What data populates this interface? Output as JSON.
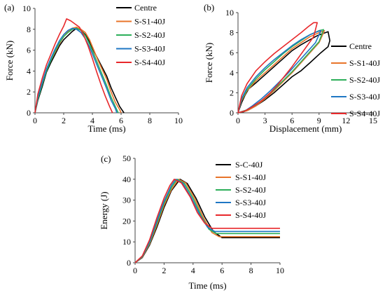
{
  "chart_data": [
    {
      "panel_label": "(a)",
      "type": "line",
      "xlabel": "Time (ms)",
      "ylabel": "Force (kN)",
      "xlim": [
        0,
        10
      ],
      "ylim": [
        0,
        10
      ],
      "xticks": [
        "0",
        "2",
        "4",
        "6",
        "8",
        "10"
      ],
      "yticks": [
        "0",
        "2",
        "4",
        "6",
        "8",
        "10"
      ],
      "legend_position": "top-right",
      "series": [
        {
          "name": "Centre",
          "color": "#000000",
          "x": [
            0,
            0.2,
            0.5,
            0.8,
            1.1,
            1.4,
            1.7,
            2.0,
            2.3,
            2.6,
            2.9,
            3.2,
            3.5,
            3.8,
            4.1,
            4.4,
            4.7,
            5.0,
            5.3,
            5.6,
            5.9,
            6.2
          ],
          "y": [
            0,
            1.2,
            2.5,
            3.9,
            4.8,
            5.6,
            6.4,
            7.0,
            7.4,
            7.8,
            8.1,
            7.9,
            7.5,
            6.8,
            5.9,
            5.1,
            4.3,
            3.5,
            2.4,
            1.5,
            0.6,
            0
          ]
        },
        {
          "name": "S-S1-40J",
          "color": "#E8742A",
          "x": [
            0,
            0.2,
            0.5,
            0.8,
            1.1,
            1.4,
            1.7,
            2.0,
            2.3,
            2.6,
            2.9,
            3.2,
            3.5,
            3.8,
            4.1,
            4.4,
            4.7,
            5.0,
            5.3,
            5.6,
            5.9,
            6.0
          ],
          "y": [
            0,
            1.4,
            2.9,
            4.1,
            5.0,
            5.8,
            6.6,
            7.3,
            7.8,
            8.1,
            8.2,
            8.0,
            7.7,
            7.0,
            6.0,
            5.0,
            4.1,
            3.2,
            2.0,
            1.0,
            0.3,
            0
          ]
        },
        {
          "name": "S-S2-40J",
          "color": "#2DAF5A",
          "x": [
            0,
            0.2,
            0.5,
            0.8,
            1.1,
            1.4,
            1.7,
            2.0,
            2.3,
            2.6,
            2.9,
            3.2,
            3.5,
            3.8,
            4.1,
            4.4,
            4.7,
            5.0,
            5.3,
            5.6,
            5.8
          ],
          "y": [
            0,
            1.3,
            2.7,
            4.0,
            5.0,
            5.9,
            6.7,
            7.3,
            7.7,
            8.0,
            8.1,
            7.9,
            7.4,
            6.6,
            5.6,
            4.6,
            3.6,
            2.6,
            1.5,
            0.6,
            0
          ]
        },
        {
          "name": "S-S3-40J",
          "color": "#1F77C4",
          "x": [
            0,
            0.2,
            0.5,
            0.8,
            1.1,
            1.4,
            1.7,
            2.0,
            2.3,
            2.6,
            2.9,
            3.2,
            3.5,
            3.8,
            4.1,
            4.4,
            4.7,
            5.0,
            5.3,
            5.6,
            5.7
          ],
          "y": [
            0,
            1.5,
            2.9,
            4.2,
            5.2,
            6.1,
            6.9,
            7.5,
            7.9,
            8.1,
            8.0,
            7.7,
            7.1,
            6.3,
            5.3,
            4.3,
            3.3,
            2.3,
            1.2,
            0.4,
            0
          ]
        },
        {
          "name": "S-S4-40J",
          "color": "#E8282B",
          "x": [
            0,
            0.2,
            0.5,
            0.8,
            1.1,
            1.4,
            1.7,
            2.0,
            2.2,
            2.5,
            2.8,
            3.1,
            3.4,
            3.7,
            4.0,
            4.3,
            4.6,
            4.9,
            5.2,
            5.4
          ],
          "y": [
            0,
            1.8,
            3.3,
            4.6,
            5.6,
            6.6,
            7.5,
            8.3,
            9.0,
            8.8,
            8.5,
            8.2,
            7.4,
            6.4,
            5.2,
            3.9,
            2.7,
            1.6,
            0.6,
            0
          ]
        }
      ]
    },
    {
      "panel_label": "(b)",
      "type": "line",
      "xlabel": "Displacement (mm)",
      "ylabel": "Force (kN)",
      "xlim": [
        0,
        15
      ],
      "ylim": [
        0,
        10
      ],
      "xticks": [
        "0",
        "3",
        "6",
        "9",
        "12",
        "15"
      ],
      "yticks": [
        "0",
        "2",
        "4",
        "6",
        "8",
        "10"
      ],
      "legend_position": "right",
      "series": [
        {
          "name": "Centre",
          "color": "#000000",
          "x": [
            0,
            0.4,
            0.8,
            1.2,
            2.0,
            3.0,
            4.0,
            5.0,
            6.0,
            7.0,
            8.0,
            8.8,
            9.4,
            10.0,
            10.2,
            10.0,
            9.2,
            8.0,
            7.0,
            6.0,
            5.0,
            4.0,
            3.0,
            2.0,
            1.2,
            0.6,
            0
          ],
          "y": [
            0,
            1.0,
            1.8,
            2.4,
            3.0,
            3.8,
            4.6,
            5.4,
            6.2,
            6.8,
            7.3,
            7.7,
            7.9,
            8.1,
            7.2,
            6.6,
            6.0,
            5.0,
            4.2,
            3.6,
            2.8,
            2.0,
            1.3,
            0.7,
            0.3,
            0.1,
            0
          ]
        },
        {
          "name": "S-S1-40J",
          "color": "#E8742A",
          "x": [
            0,
            0.4,
            1.0,
            2.0,
            3.0,
            4.0,
            5.0,
            6.0,
            7.0,
            8.0,
            9.0,
            9.6,
            9.0,
            8.0,
            7.0,
            6.0,
            5.0,
            4.0,
            3.0,
            2.0,
            1.0,
            0
          ],
          "y": [
            0,
            1.2,
            2.2,
            3.2,
            4.0,
            4.8,
            5.6,
            6.4,
            7.0,
            7.6,
            8.0,
            8.2,
            7.0,
            6.0,
            5.0,
            4.0,
            3.1,
            2.2,
            1.4,
            0.7,
            0.2,
            0
          ]
        },
        {
          "name": "S-S2-40J",
          "color": "#2DAF5A",
          "x": [
            0,
            0.4,
            1.0,
            2.0,
            3.0,
            4.0,
            5.0,
            6.0,
            7.0,
            8.0,
            9.0,
            9.5,
            9.0,
            8.0,
            7.0,
            6.0,
            5.0,
            4.0,
            3.0,
            2.0,
            1.0,
            0
          ],
          "y": [
            0,
            1.3,
            2.3,
            3.4,
            4.3,
            5.1,
            5.9,
            6.6,
            7.2,
            7.8,
            8.2,
            8.3,
            7.1,
            6.1,
            5.1,
            4.1,
            3.2,
            2.3,
            1.5,
            0.8,
            0.3,
            0
          ]
        },
        {
          "name": "S-S3-40J",
          "color": "#1F77C4",
          "x": [
            0,
            0.4,
            1.0,
            2.0,
            3.0,
            4.0,
            5.0,
            6.0,
            7.0,
            8.0,
            8.8,
            9.2,
            8.6,
            7.6,
            6.6,
            5.6,
            4.6,
            3.6,
            2.6,
            1.6,
            0.8,
            0
          ],
          "y": [
            0,
            1.4,
            2.5,
            3.6,
            4.5,
            5.3,
            6.0,
            6.7,
            7.3,
            7.8,
            8.1,
            8.2,
            7.0,
            6.0,
            5.0,
            4.0,
            3.1,
            2.2,
            1.4,
            0.7,
            0.2,
            0
          ]
        },
        {
          "name": "S-S4-40J",
          "color": "#E8282B",
          "x": [
            0,
            0.4,
            1.0,
            2.0,
            3.0,
            4.0,
            5.0,
            6.0,
            7.0,
            7.8,
            8.4,
            8.8,
            8.4,
            7.6,
            6.8,
            6.0,
            5.2,
            4.4,
            3.6,
            2.6,
            1.6,
            0.8,
            0
          ],
          "y": [
            0,
            1.7,
            2.9,
            4.2,
            5.1,
            5.9,
            6.6,
            7.3,
            8.0,
            8.6,
            9.0,
            9.0,
            7.6,
            6.6,
            5.6,
            4.6,
            3.7,
            2.8,
            2.0,
            1.2,
            0.6,
            0.2,
            0
          ]
        }
      ]
    },
    {
      "panel_label": "(c)",
      "type": "line",
      "xlabel": "Time (ms)",
      "ylabel": "Energy  (J)",
      "xlim": [
        0,
        10
      ],
      "ylim": [
        0,
        50
      ],
      "xticks": [
        "0",
        "2",
        "4",
        "6",
        "8",
        "10"
      ],
      "yticks": [
        "0",
        "10",
        "20",
        "30",
        "40",
        "50"
      ],
      "legend_position": "top-right",
      "series": [
        {
          "name": "S-C-40J",
          "color": "#000000",
          "x": [
            0,
            0.5,
            1.0,
            1.5,
            2.0,
            2.5,
            3.1,
            3.6,
            4.2,
            4.8,
            5.4,
            6.0,
            7.0,
            8.0,
            9.0,
            10.0
          ],
          "y": [
            0,
            2.5,
            8.5,
            17.0,
            26.5,
            34.5,
            40.0,
            38.0,
            31.0,
            22.0,
            15.0,
            12.0,
            12.0,
            12.0,
            12.0,
            12.0
          ]
        },
        {
          "name": "S-S1-40J",
          "color": "#E8742A",
          "x": [
            0,
            0.5,
            1.0,
            1.5,
            2.0,
            2.5,
            3.0,
            3.5,
            4.1,
            4.7,
            5.3,
            5.8,
            7.0,
            8.0,
            9.0,
            10.0
          ],
          "y": [
            0,
            2.7,
            9.0,
            18.0,
            27.5,
            35.0,
            40.0,
            38.2,
            31.0,
            21.8,
            14.5,
            12.5,
            12.5,
            12.5,
            12.5,
            12.5
          ]
        },
        {
          "name": "S-S2-40J",
          "color": "#2DAF5A",
          "x": [
            0,
            0.5,
            1.0,
            1.5,
            2.0,
            2.5,
            2.9,
            3.4,
            4.0,
            4.6,
            5.1,
            5.6,
            7.0,
            8.0,
            9.0,
            10.0
          ],
          "y": [
            0,
            2.9,
            9.5,
            19.0,
            28.5,
            36.0,
            40.0,
            38.0,
            31.0,
            22.0,
            16.0,
            14.0,
            14.0,
            14.0,
            14.0,
            14.0
          ]
        },
        {
          "name": "S-S3-40J",
          "color": "#1F77C4",
          "x": [
            0,
            0.5,
            1.0,
            1.5,
            2.0,
            2.5,
            2.8,
            3.3,
            3.9,
            4.5,
            5.0,
            5.5,
            7.0,
            8.0,
            9.0,
            10.0
          ],
          "y": [
            0,
            3.1,
            10.0,
            20.0,
            29.5,
            37.0,
            40.0,
            38.0,
            31.0,
            22.5,
            17.0,
            15.0,
            15.0,
            15.0,
            15.0,
            15.0
          ]
        },
        {
          "name": "S-S4-40J",
          "color": "#E8282B",
          "x": [
            0,
            0.5,
            1.0,
            1.5,
            2.0,
            2.4,
            2.7,
            3.2,
            3.8,
            4.3,
            4.8,
            5.3,
            7.0,
            8.0,
            9.0,
            10.0
          ],
          "y": [
            0,
            3.3,
            11.0,
            21.5,
            31.0,
            37.0,
            40.0,
            38.2,
            31.5,
            24.0,
            19.0,
            16.5,
            16.5,
            16.5,
            16.5,
            16.5
          ]
        }
      ]
    }
  ]
}
